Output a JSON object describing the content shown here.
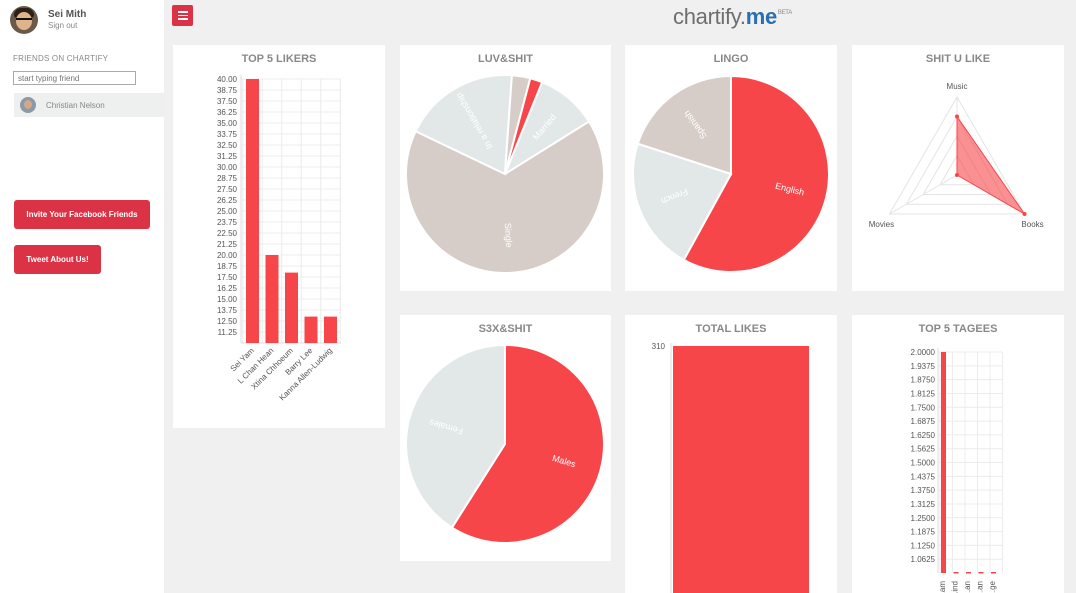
{
  "user": {
    "name": "Sei Mith",
    "signout": "Sign out"
  },
  "friends": {
    "label": "FRIENDS ON CHARTIFY",
    "placeholder": "start typing friend",
    "items": [
      {
        "name": "Christian Nelson"
      }
    ]
  },
  "buttons": {
    "invite": "Invite Your Facebook Friends",
    "tweet": "Tweet About Us!"
  },
  "brand": {
    "text": "chartify",
    "dot": ".",
    "suffix": "me",
    "badge": "BETA"
  },
  "colors": {
    "accent": "#dc3246",
    "red": "#f7464a",
    "beige": "#d6cdc8",
    "pale": "#e2e8e8",
    "brand_blue": "#2a6fb0"
  },
  "cards": {
    "top5likers": {
      "title": "TOP 5 LIKERS"
    },
    "luv": {
      "title": "LUV&SHIT"
    },
    "lingo": {
      "title": "LINGO"
    },
    "shitulike": {
      "title": "SHIT U LIKE"
    },
    "s3x": {
      "title": "S3X&SHIT"
    },
    "totallikes": {
      "title": "TOTAL LIKES"
    },
    "top5tagees": {
      "title": "TOP 5 TAGEES"
    }
  },
  "chart_data": [
    {
      "id": "top5likers",
      "type": "bar",
      "categories": [
        "Sei Yam",
        "L Chan Hean",
        "Xtina Chhoeum",
        "Barry Lee",
        "Kanna Allen-Ludwig"
      ],
      "values": [
        40,
        20,
        18,
        13,
        13
      ],
      "yticks": [
        "40.00",
        "38.75",
        "37.50",
        "36.25",
        "35.00",
        "33.75",
        "32.50",
        "31.25",
        "30.00",
        "28.75",
        "27.50",
        "26.25",
        "25.00",
        "23.75",
        "22.50",
        "21.25",
        "20.00",
        "18.75",
        "17.50",
        "16.25",
        "15.00",
        "13.75",
        "12.50",
        "11.25"
      ],
      "ylim": [
        10,
        40
      ],
      "grid": true
    },
    {
      "id": "luv",
      "type": "pie",
      "slices": [
        {
          "label": "Married",
          "value": 10,
          "color": "#e2e8e8"
        },
        {
          "label": "Single",
          "value": 66,
          "color": "#d6cdc8"
        },
        {
          "label": "In a relationship",
          "value": 19,
          "color": "#e2e8e8"
        },
        {
          "label": "",
          "value": 3,
          "color": "#d6cdc8"
        },
        {
          "label": "",
          "value": 2,
          "color": "#f7464a"
        }
      ]
    },
    {
      "id": "lingo",
      "type": "pie",
      "slices": [
        {
          "label": "English",
          "value": 58,
          "color": "#f7464a"
        },
        {
          "label": "French",
          "value": 22,
          "color": "#e2e8e8"
        },
        {
          "label": "Spanish",
          "value": 20,
          "color": "#d6cdc8"
        }
      ]
    },
    {
      "id": "shitulike",
      "type": "radar",
      "axes": [
        "Music",
        "Books",
        "Movies"
      ],
      "values": [
        0.75,
        1.0,
        0.0
      ],
      "grid_levels": 4
    },
    {
      "id": "s3x",
      "type": "pie",
      "slices": [
        {
          "label": "Males",
          "value": 59,
          "color": "#f7464a"
        },
        {
          "label": "Females",
          "value": 41,
          "color": "#e2e8e8"
        }
      ]
    },
    {
      "id": "totallikes",
      "type": "bar",
      "categories": [
        ""
      ],
      "values": [
        310
      ],
      "yticks": [
        "310"
      ],
      "ylim": [
        0,
        310
      ]
    },
    {
      "id": "top5tagees",
      "type": "bar",
      "categories": [
        "...am",
        "...ind",
        "...an",
        "...an",
        "...ge"
      ],
      "values": [
        2,
        1,
        1,
        1,
        1
      ],
      "yticks": [
        "2.0000",
        "1.9375",
        "1.8750",
        "1.8125",
        "1.7500",
        "1.6875",
        "1.6250",
        "1.5625",
        "1.5000",
        "1.4375",
        "1.3750",
        "1.3125",
        "1.2500",
        "1.1875",
        "1.1250",
        "1.0625"
      ],
      "ylim": [
        1,
        2
      ],
      "grid": true
    }
  ]
}
